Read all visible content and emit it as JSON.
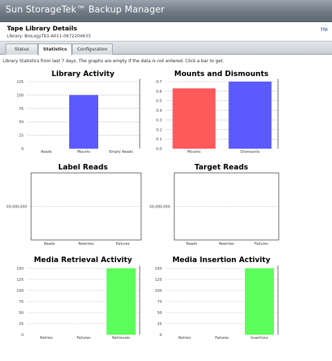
{
  "header": {
    "app_title": "Sun StorageTek™ Backup Manager"
  },
  "page": {
    "title": "Tape Library Details",
    "help_label": "He",
    "library_id": "Library: BioLogyTb1-A011-0672204633"
  },
  "tabs": [
    {
      "label": "Status"
    },
    {
      "label": "Statistics",
      "active": true
    },
    {
      "label": "Configuration"
    }
  ],
  "info_text": "Library Statistics from last 7 days. The graphs are empty if the data is not entered. Click a bar to get.",
  "colors": {
    "red": "#ff5a5a",
    "blue": "#5a5aff",
    "green": "#5aff5a",
    "grid": "#999999"
  },
  "chart_data": [
    {
      "id": "library-activity",
      "type": "bar",
      "title": "Library Activity",
      "categories": [
        "Reads",
        "Mounts",
        "Empty Reads"
      ],
      "values": [
        0,
        100,
        0
      ],
      "colors": [
        "#5a5aff",
        "#5a5aff",
        "#5a5aff"
      ],
      "yticks": [
        "0",
        "25",
        "50",
        "75",
        "100",
        "125"
      ],
      "ylim": [
        0,
        125
      ],
      "grid": true
    },
    {
      "id": "mounts-dismounts",
      "type": "bar",
      "title": "Mounts and Dismounts",
      "categories": [
        "Mounts",
        "Dismounts"
      ],
      "values": [
        0.63,
        0.7
      ],
      "colors": [
        "#ff5a5a",
        "#5a5aff"
      ],
      "yticks": [
        "0.0",
        "0.1",
        "0.2",
        "0.3",
        "0.4",
        "0.5",
        "0.6",
        "0.7"
      ],
      "ylim": [
        0,
        0.7
      ],
      "grid": true
    },
    {
      "id": "label-reads",
      "type": "bar",
      "title": "Label Reads",
      "categories": [
        "Reads",
        "Rewrites",
        "Failures"
      ],
      "values": [
        0,
        0,
        0
      ],
      "colors": [
        "#5a5aff",
        "#5a5aff",
        "#5a5aff"
      ],
      "yticks": [
        "00,000,000"
      ],
      "ylim": [
        0,
        1
      ],
      "grid": true
    },
    {
      "id": "target-reads",
      "type": "bar",
      "title": "Target Reads",
      "categories": [
        "Reads",
        "Rewrites",
        "Failures"
      ],
      "values": [
        0,
        0,
        0
      ],
      "colors": [
        "#5a5aff",
        "#5a5aff",
        "#5a5aff"
      ],
      "yticks": [
        "00,000,000"
      ],
      "ylim": [
        0,
        1
      ],
      "grid": true
    },
    {
      "id": "media-retrieval",
      "type": "bar",
      "title": "Media Retrieval Activity",
      "categories": [
        "Retries",
        "Failures",
        "Retrievals"
      ],
      "values": [
        0,
        0,
        150
      ],
      "colors": [
        "#5aff5a",
        "#5aff5a",
        "#5aff5a"
      ],
      "yticks": [
        "0",
        "25",
        "50",
        "75",
        "100",
        "125",
        "150"
      ],
      "ylim": [
        0,
        150
      ],
      "grid": true
    },
    {
      "id": "media-insertion",
      "type": "bar",
      "title": "Media Insertion Activity",
      "categories": [
        "Retries",
        "Failures",
        "Insertions"
      ],
      "values": [
        0,
        0,
        150
      ],
      "colors": [
        "#5aff5a",
        "#5aff5a",
        "#5aff5a"
      ],
      "yticks": [
        "0",
        "25",
        "50",
        "75",
        "100",
        "125",
        "150"
      ],
      "ylim": [
        0,
        150
      ],
      "grid": true
    }
  ]
}
